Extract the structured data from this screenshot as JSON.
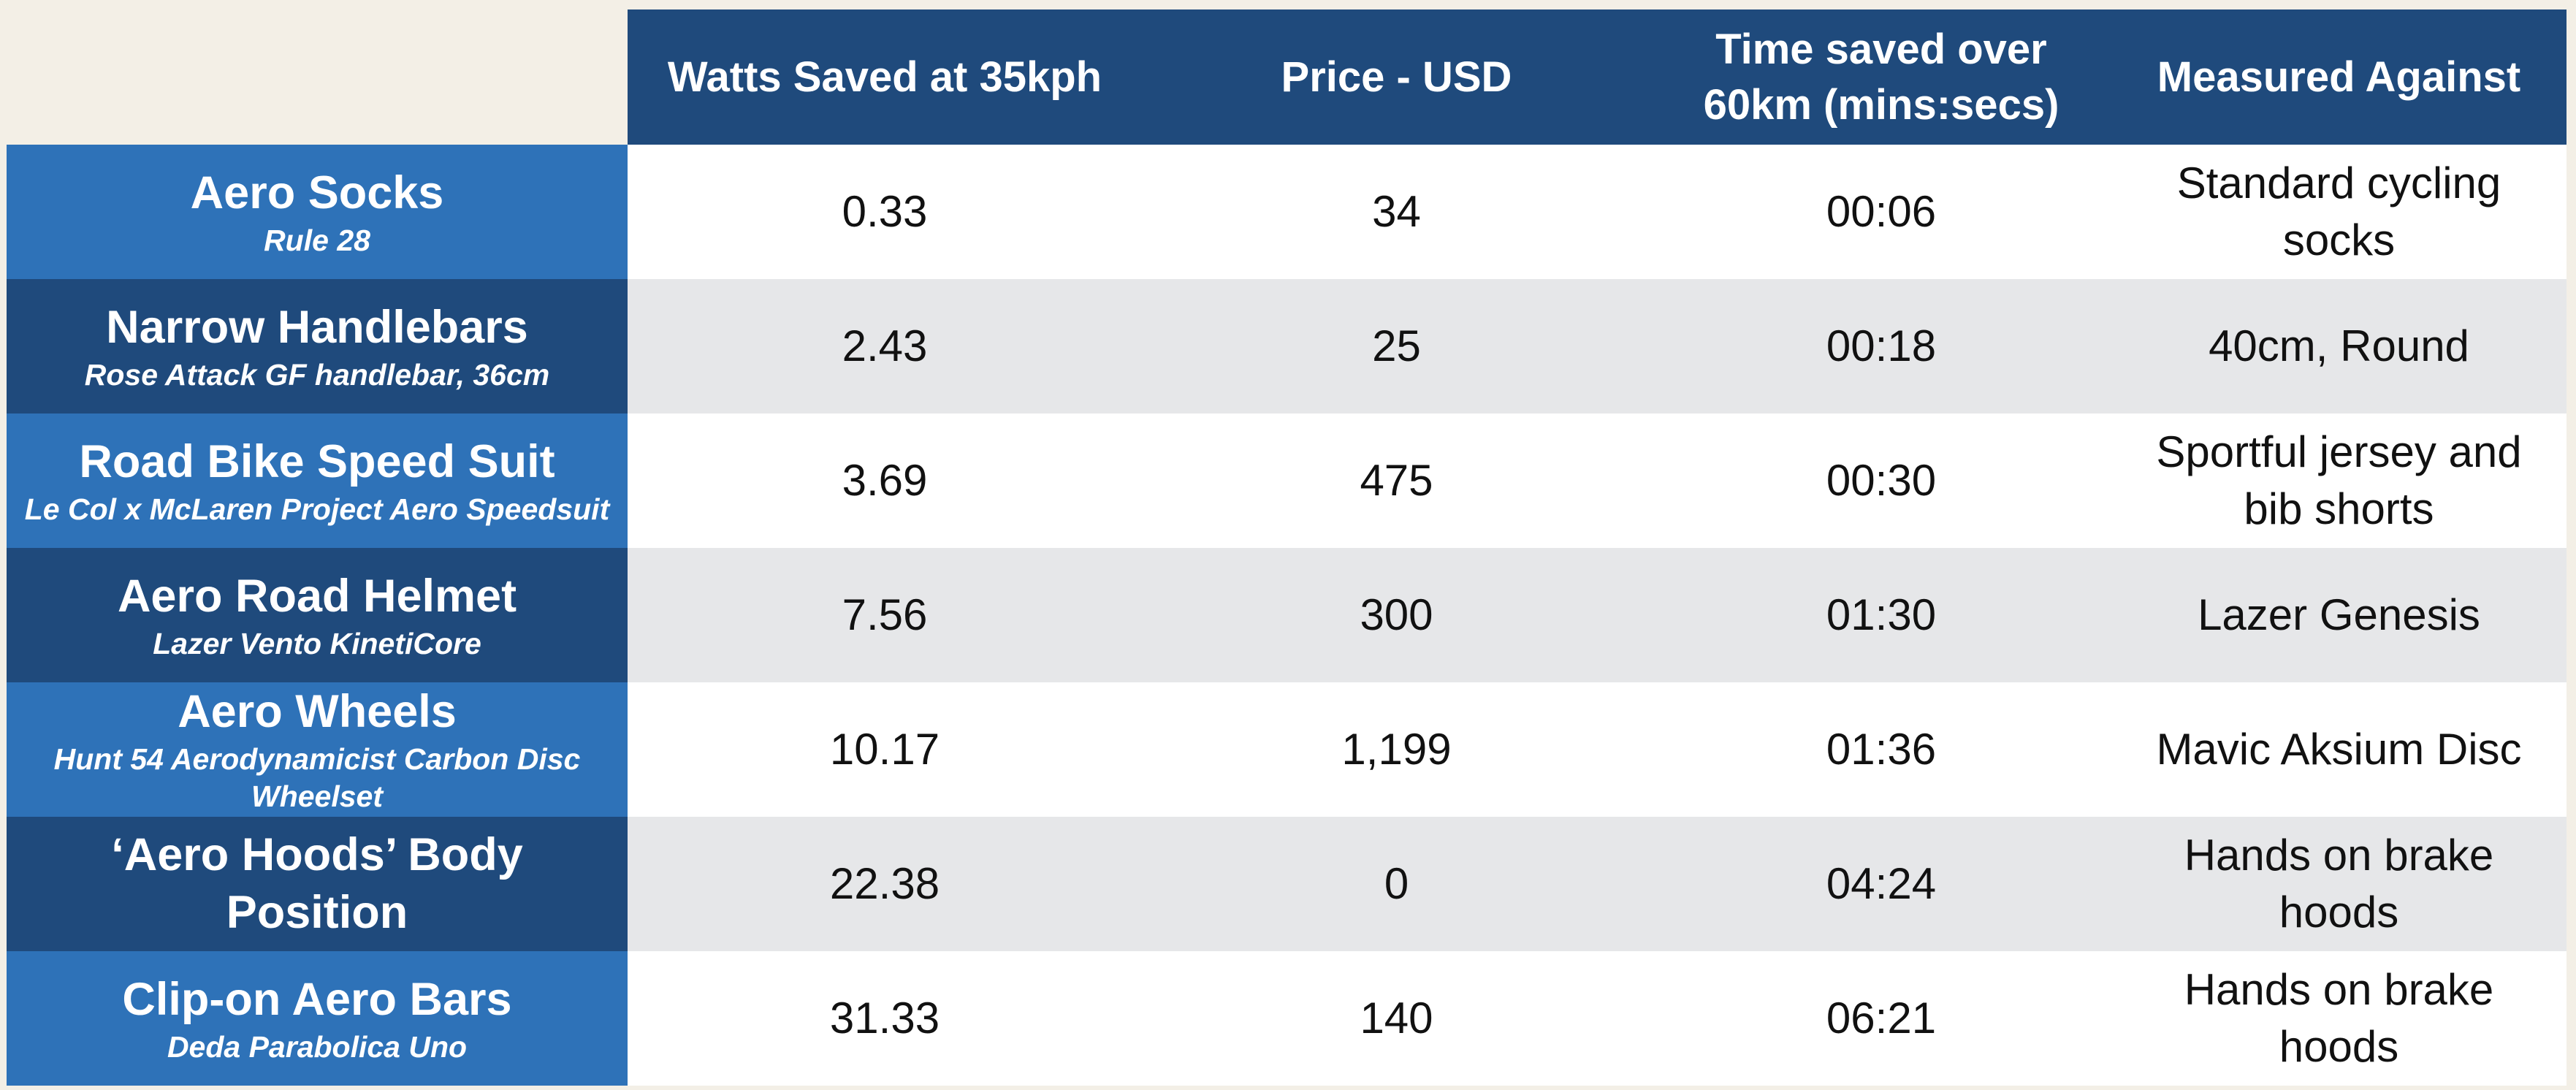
{
  "table": {
    "headers": [
      "Watts Saved at 35kph",
      "Price - USD",
      "Time saved over 60km (mins:secs)",
      "Measured Against"
    ],
    "rows": [
      {
        "name": "Aero Socks",
        "subtitle": "Rule 28",
        "cells": [
          "0.33",
          "34",
          "00:06",
          "Standard cycling socks"
        ]
      },
      {
        "name": "Narrow Handlebars",
        "subtitle": "Rose Attack GF handlebar, 36cm",
        "cells": [
          "2.43",
          "25",
          "00:18",
          "40cm, Round"
        ]
      },
      {
        "name": "Road Bike Speed Suit",
        "subtitle": "Le Col x McLaren Project Aero Speedsuit",
        "cells": [
          "3.69",
          "475",
          "00:30",
          "Sportful jersey and bib shorts"
        ]
      },
      {
        "name": "Aero Road Helmet",
        "subtitle": "Lazer Vento KinetiCore",
        "cells": [
          "7.56",
          "300",
          "01:30",
          "Lazer Genesis"
        ]
      },
      {
        "name": "Aero Wheels",
        "subtitle": "Hunt 54 Aerodynamicist Carbon Disc Wheelset",
        "cells": [
          "10.17",
          "1,199",
          "01:36",
          "Mavic Aksium Disc"
        ]
      },
      {
        "name": "‘Aero Hoods’ Body Position",
        "cells": [
          "22.38",
          "0",
          "04:24",
          "Hands on brake hoods"
        ]
      },
      {
        "name": "Clip-on Aero Bars",
        "subtitle": "Deda Parabolica Uno",
        "cells": [
          "31.33",
          "140",
          "06:21",
          "Hands on brake hoods"
        ]
      }
    ]
  }
}
